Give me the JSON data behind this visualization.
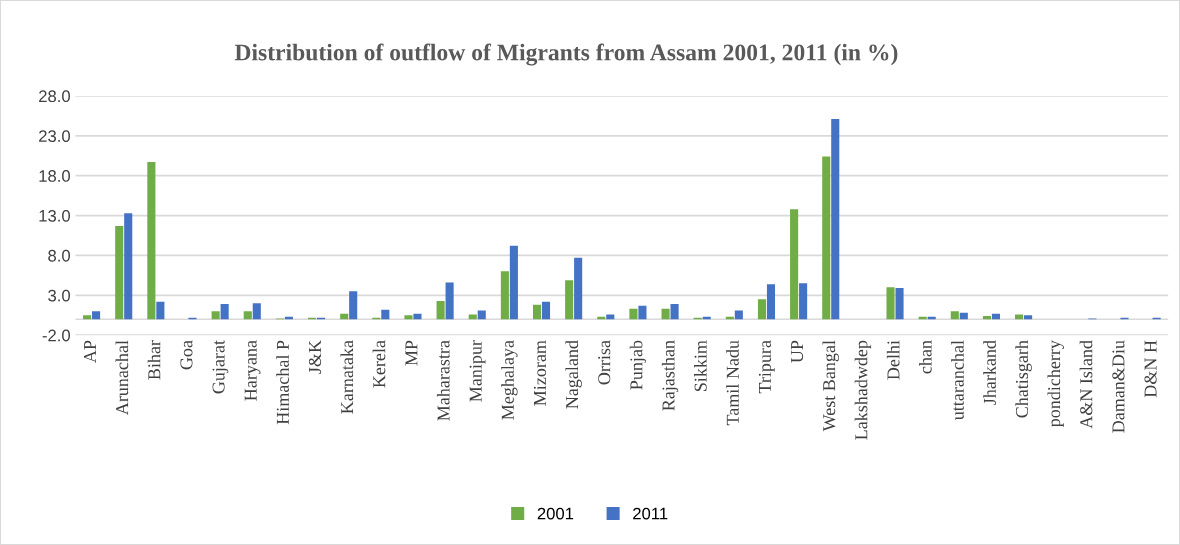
{
  "chart_data": {
    "type": "bar",
    "title": "Distribution of outflow of Migrants from Assam 2001, 2011 (in %)",
    "categories": [
      "AP",
      "Arunachal",
      "Bihar",
      "Goa",
      "Gujarat",
      "Haryana",
      "Himachal P",
      "J&K",
      "Karnataka",
      "Kerela",
      "MP",
      "Maharastra",
      "Manipur",
      "Meghalaya",
      "Mizoram",
      "Nagaland",
      "Orrisa",
      "Punjab",
      "Rajasthan",
      "Sikkim",
      "Tamil Nadu",
      "Tripura",
      "UP",
      "West Bangal",
      "Lakshadwdep",
      "Delhi",
      "chan",
      "uttaranchal",
      "Jharkand",
      "Chatisgarh",
      "pondicherry",
      "A&N Island",
      "Daman&Diu",
      "D&N H"
    ],
    "series": [
      {
        "name": "2001",
        "color": "#70ad47",
        "values": [
          0.5,
          11.7,
          19.7,
          0,
          1.0,
          1.0,
          0.1,
          0.2,
          0.7,
          0.2,
          0.5,
          2.3,
          0.6,
          6.0,
          1.8,
          4.9,
          0.3,
          1.3,
          1.3,
          0.2,
          0.3,
          2.5,
          13.8,
          20.4,
          0,
          4.0,
          0.3,
          1.0,
          0.4,
          0.6,
          0,
          0,
          0,
          0
        ]
      },
      {
        "name": "2011",
        "color": "#4472c4",
        "values": [
          1.0,
          13.3,
          2.2,
          0.2,
          1.9,
          2.0,
          0.3,
          0.2,
          3.5,
          1.2,
          0.7,
          4.6,
          1.1,
          9.2,
          2.2,
          7.7,
          0.6,
          1.7,
          1.9,
          0.3,
          1.1,
          4.4,
          4.5,
          25.1,
          0,
          3.9,
          0.3,
          0.8,
          0.7,
          0.5,
          0,
          0.1,
          0.2,
          0.2
        ]
      }
    ],
    "ylim": [
      -2,
      28
    ],
    "yticks": [
      {
        "value": -2,
        "label": "-2.0"
      },
      {
        "value": 3,
        "label": "3.0"
      },
      {
        "value": 8,
        "label": "8.0"
      },
      {
        "value": 13,
        "label": "13.0"
      },
      {
        "value": 18,
        "label": "18.0"
      },
      {
        "value": 23,
        "label": "23.0"
      },
      {
        "value": 28,
        "label": "28.0"
      }
    ],
    "grid": "y",
    "legend": "bottom"
  }
}
